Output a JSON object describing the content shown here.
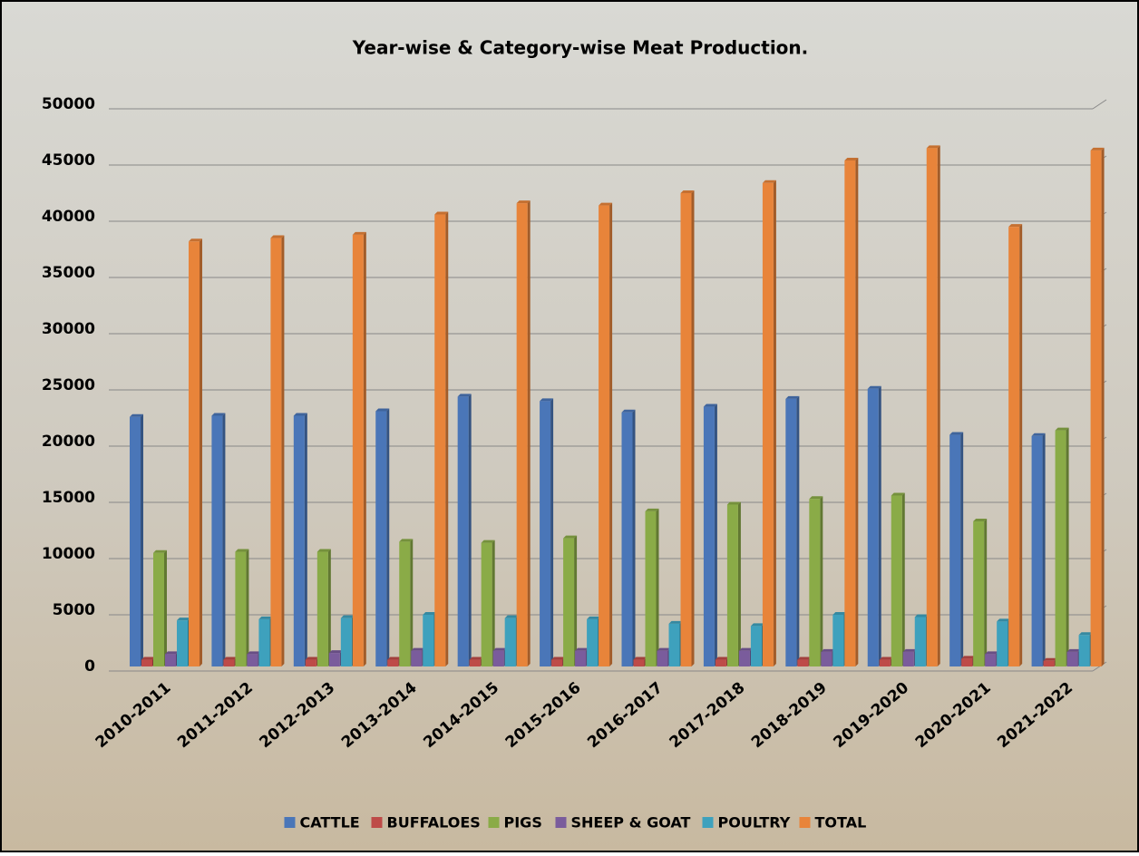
{
  "chart_data": {
    "type": "bar",
    "title": "Year-wise & Category-wise Meat Production.",
    "categories": [
      "2010-2011",
      "2011-2012",
      "2012-2013",
      "2013-2014",
      "2014-2015",
      "2015-2016",
      "2016-2017",
      "2017-2018",
      "2018-2019",
      "2019-2020",
      "2020-2021",
      "2021-2022"
    ],
    "series": [
      {
        "name": "CATTLE",
        "color": "#4a76b8",
        "values": [
          22200,
          22300,
          22300,
          22700,
          24000,
          23600,
          22600,
          23100,
          23800,
          24700,
          20600,
          20500
        ]
      },
      {
        "name": "BUFFALOES",
        "color": "#be4b48",
        "values": [
          600,
          600,
          600,
          600,
          600,
          600,
          600,
          600,
          600,
          600,
          700,
          500
        ]
      },
      {
        "name": "PIGS",
        "color": "#8aab47",
        "values": [
          10100,
          10200,
          10200,
          11100,
          11000,
          11400,
          13800,
          14400,
          14900,
          15200,
          12900,
          21000
        ]
      },
      {
        "name": "SHEEP & GOAT",
        "color": "#7a5c9c",
        "values": [
          1100,
          1100,
          1200,
          1400,
          1400,
          1400,
          1400,
          1400,
          1300,
          1300,
          1100,
          1300
        ]
      },
      {
        "name": "POULTRY",
        "color": "#3ea1bd",
        "values": [
          4100,
          4200,
          4300,
          4600,
          4300,
          4200,
          3800,
          3600,
          4600,
          4400,
          4000,
          2800
        ]
      },
      {
        "name": "TOTAL",
        "color": "#e8843a",
        "values": [
          37800,
          38100,
          38400,
          40200,
          41200,
          41000,
          42100,
          43000,
          45000,
          46100,
          39100,
          45900
        ]
      }
    ],
    "ylim": [
      0,
      50000
    ],
    "yticks": [
      0,
      5000,
      10000,
      15000,
      20000,
      25000,
      30000,
      35000,
      40000,
      45000,
      50000
    ],
    "grid": true,
    "legend": "bottom"
  }
}
